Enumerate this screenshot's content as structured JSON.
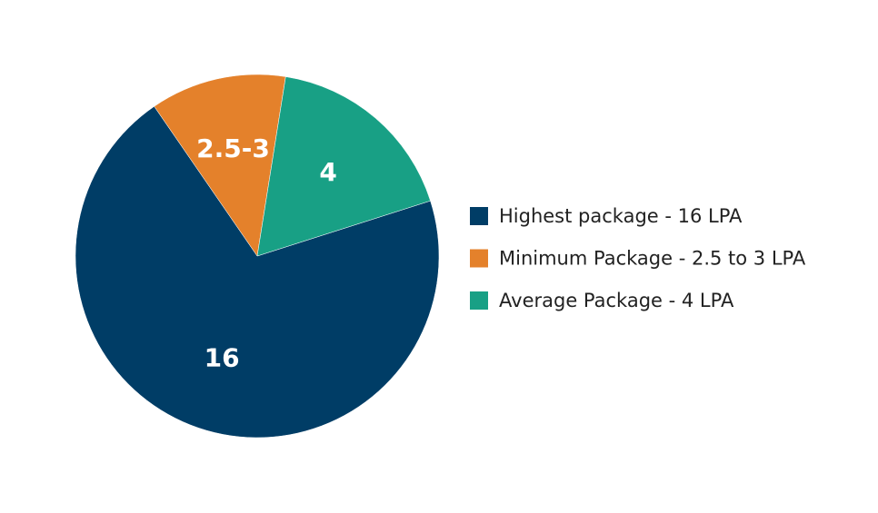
{
  "chart_data": {
    "type": "pie",
    "categories": [
      "Highest package - 16 LPA",
      "Minimum Package - 2.5 to 3 LPA",
      "Average Package - 4 LPA"
    ],
    "values": [
      16,
      2.75,
      4
    ],
    "value_labels": [
      "16",
      "2.5-3",
      "4"
    ],
    "colors": [
      "#003d66",
      "#e4812b",
      "#18a085"
    ],
    "legend": "right"
  }
}
